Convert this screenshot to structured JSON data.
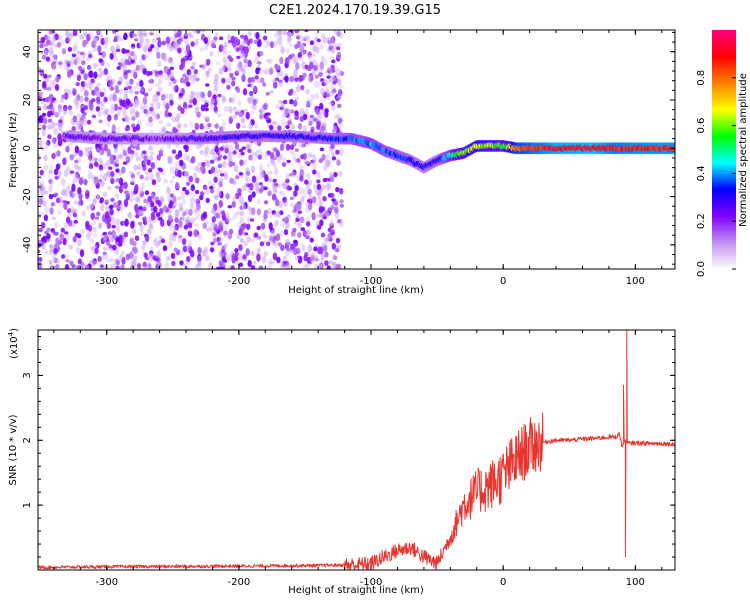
{
  "title": "C2E1.2024.170.19.39.G15",
  "chart_data": [
    {
      "type": "heatmap",
      "name": "spectrogram",
      "xlabel": "Height of straight line (km)",
      "ylabel": "Frequency (Hz)",
      "xlim": [
        -352,
        130
      ],
      "ylim": [
        -50,
        49
      ],
      "xticks": [
        -300,
        -200,
        -100,
        0,
        100
      ],
      "xtick_labels": [
        "-300",
        "-200",
        "-100",
        "0",
        "100"
      ],
      "yticks": [
        -40,
        -20,
        0,
        20,
        40
      ],
      "ytick_labels": [
        "-40",
        "-20",
        "0",
        "20",
        "40"
      ],
      "colorbar": {
        "label": "Normalized spectral amplitude",
        "range": [
          0,
          1
        ],
        "ticks": [
          0,
          0.2,
          0.4,
          0.6,
          0.8
        ],
        "tick_labels": [
          "0.0",
          "0.2",
          "0.4",
          "0.6",
          "0.8"
        ],
        "colors": [
          "#ffffff",
          "#c090f0",
          "#8000ff",
          "#0000ff",
          "#00ffff",
          "#00ff00",
          "#ffff00",
          "#ff8000",
          "#ff0000",
          "#ff0080"
        ]
      },
      "noise_region_x": [
        -352,
        -122
      ],
      "ridge": [
        {
          "x": -330,
          "y": 5,
          "amp": 0.25
        },
        {
          "x": -300,
          "y": 4,
          "amp": 0.25
        },
        {
          "x": -260,
          "y": 4,
          "amp": 0.22
        },
        {
          "x": -230,
          "y": 4,
          "amp": 0.28
        },
        {
          "x": -200,
          "y": 5,
          "amp": 0.3
        },
        {
          "x": -160,
          "y": 5,
          "amp": 0.3
        },
        {
          "x": -130,
          "y": 4,
          "amp": 0.32
        },
        {
          "x": -115,
          "y": 4,
          "amp": 0.38
        },
        {
          "x": -100,
          "y": 2,
          "amp": 0.4
        },
        {
          "x": -90,
          "y": -1,
          "amp": 0.38
        },
        {
          "x": -80,
          "y": -3,
          "amp": 0.35
        },
        {
          "x": -70,
          "y": -5,
          "amp": 0.33
        },
        {
          "x": -60,
          "y": -8,
          "amp": 0.3
        },
        {
          "x": -50,
          "y": -5,
          "amp": 0.32
        },
        {
          "x": -40,
          "y": -3,
          "amp": 0.45
        },
        {
          "x": -30,
          "y": -2,
          "amp": 0.6
        },
        {
          "x": -20,
          "y": 1,
          "amp": 0.65
        },
        {
          "x": -10,
          "y": 1,
          "amp": 0.6
        },
        {
          "x": 0,
          "y": 1,
          "amp": 0.55
        },
        {
          "x": 10,
          "y": 0,
          "amp": 0.8
        },
        {
          "x": 40,
          "y": 0,
          "amp": 0.9
        },
        {
          "x": 70,
          "y": 0,
          "amp": 0.92
        },
        {
          "x": 85,
          "y": 0,
          "amp": 0.85
        },
        {
          "x": 100,
          "y": 0,
          "amp": 0.88
        },
        {
          "x": 130,
          "y": 0,
          "amp": 0.88
        }
      ]
    },
    {
      "type": "line",
      "name": "snr",
      "xlabel": "Height of straight line (km)",
      "ylabel": "SNR (10 * v/v)",
      "y_multiplier": "(x10",
      "y_multiplier_exp": "4",
      "y_multiplier_close": ")",
      "xlim": [
        -352,
        130
      ],
      "ylim": [
        0,
        3.7
      ],
      "xticks": [
        -300,
        -200,
        -100,
        0,
        100
      ],
      "xtick_labels": [
        "-300",
        "-200",
        "-100",
        "0",
        "100"
      ],
      "yticks": [
        1,
        2,
        3
      ],
      "ytick_labels": [
        "1",
        "2",
        "3"
      ],
      "color": "#e8342c",
      "series": [
        {
          "x": [
            -352,
            -300,
            -200,
            -140,
            -110,
            -100,
            -90,
            -80,
            -70,
            -60,
            -50,
            -40,
            -30,
            -20,
            -10,
            0,
            10,
            20,
            30,
            40,
            50,
            60,
            70,
            80,
            85,
            88,
            90,
            92,
            94,
            100,
            110,
            120,
            130
          ],
          "y": [
            0.04,
            0.05,
            0.06,
            0.07,
            0.08,
            0.1,
            0.2,
            0.3,
            0.35,
            0.2,
            0.1,
            0.5,
            1.0,
            1.2,
            1.3,
            1.45,
            1.7,
            1.9,
            1.97,
            2.0,
            2.0,
            2.02,
            2.03,
            2.05,
            2.05,
            2.1,
            1.9,
            2.0,
            1.95,
            1.96,
            1.95,
            1.95,
            1.94
          ]
        }
      ],
      "spikes": [
        {
          "x": 91,
          "y": 2.85
        },
        {
          "x": 92.5,
          "y": 0.2
        },
        {
          "x": 93.5,
          "y": 3.7
        }
      ]
    }
  ]
}
